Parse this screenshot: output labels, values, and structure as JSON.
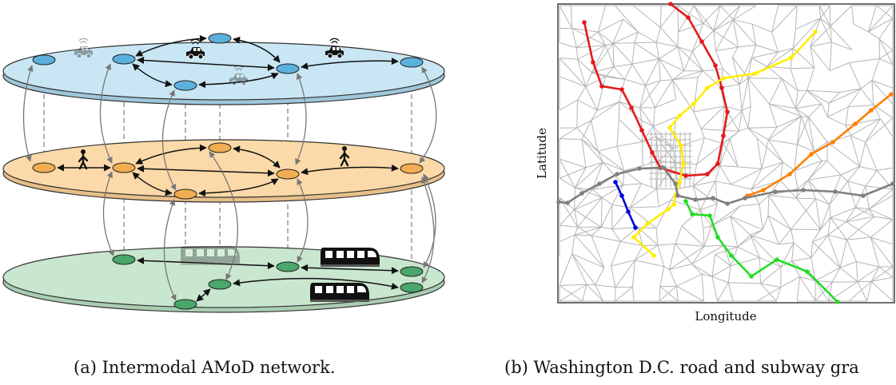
{
  "figure_a": {
    "caption": "(a) Intermodal AMoD network.",
    "colors": {
      "road": "#c8e6f3",
      "road_node": "#5cb0de",
      "walk": "#fbd9a8",
      "walk_node": "#f2ad52",
      "transit": "#c9e6cf",
      "transit_node": "#4aa76b"
    },
    "icons": [
      "car-icon",
      "pedestrian-icon",
      "train-icon"
    ]
  },
  "figure_b": {
    "caption": "(b) Washington D.C. road and subway gra",
    "xlabel": "Longitude",
    "ylabel": "Latitude",
    "line_colors": [
      "#e41a1c",
      "#ffee00",
      "#ff8000",
      "#808080",
      "#0000dd",
      "#22dd22"
    ]
  }
}
